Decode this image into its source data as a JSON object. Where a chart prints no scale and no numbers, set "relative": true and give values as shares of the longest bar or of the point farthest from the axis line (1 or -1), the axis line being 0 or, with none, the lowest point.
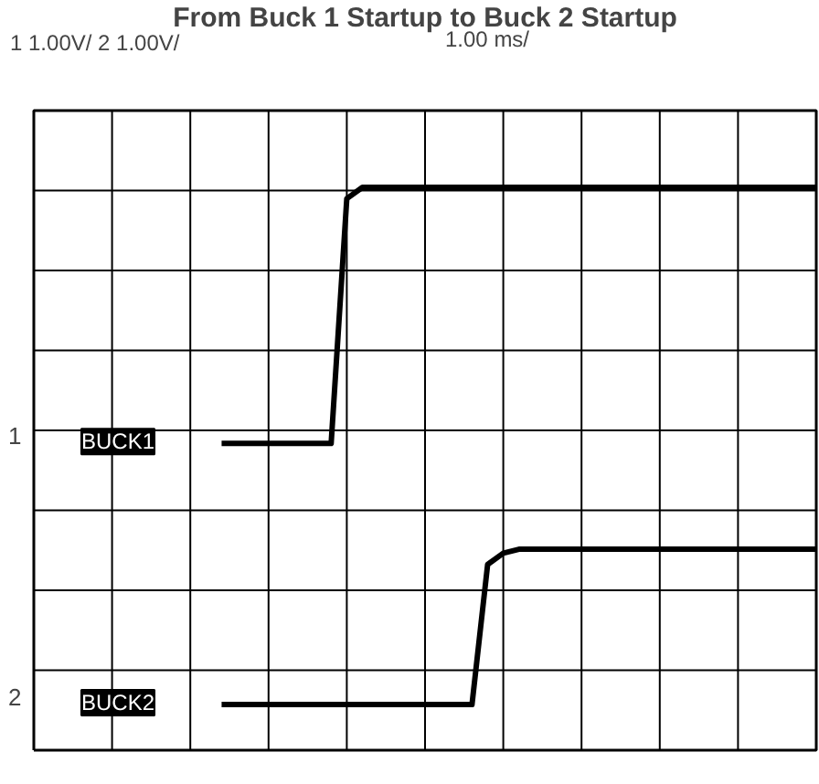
{
  "chart_data": {
    "type": "line",
    "title": "From Buck 1 Startup to Buck 2 Startup",
    "subtitle": "1 1.00V/ 2 1.00V/",
    "annotations": [
      "1.00 ms/",
      "1",
      "2"
    ],
    "relative": true,
    "grid": true,
    "legend": "left",
    "marker": "none",
    "line_style": "solid",
    "categories": [
      null,
      null,
      null,
      null,
      null,
      null,
      null,
      null,
      null,
      null,
      null,
      null,
      null,
      null,
      null,
      null,
      null,
      null,
      null,
      null,
      null,
      null,
      null,
      null,
      null,
      null,
      null,
      null,
      null,
      null,
      null,
      null,
      null,
      null,
      null,
      null,
      null,
      null,
      null,
      null,
      null,
      null,
      null,
      null,
      null,
      null,
      null,
      null,
      null,
      null,
      null
    ],
    "series": [
      {
        "name": "BUCK1",
        "color": "#000000",
        "values": [
          null,
          null,
          null,
          null,
          null,
          null,
          null,
          null,
          null,
          null,
          null,
          null,
          0.545,
          0.545,
          0.545,
          0.545,
          0.545,
          0.545,
          0.545,
          0.545,
          0.98,
          1.0,
          1.0,
          1.0,
          1.0,
          1.0,
          1.0,
          1.0,
          1.0,
          1.0,
          1.0,
          1.0,
          1.0,
          1.0,
          1.0,
          1.0,
          1.0,
          1.0,
          1.0,
          1.0,
          1.0,
          1.0,
          1.0,
          1.0,
          1.0,
          1.0,
          1.0,
          1.0,
          1.0,
          1.0,
          1.0
        ]
      },
      {
        "name": "BUCK2",
        "color": "#000000",
        "values": [
          null,
          null,
          null,
          null,
          null,
          null,
          null,
          null,
          null,
          null,
          null,
          null,
          0.081,
          0.081,
          0.081,
          0.081,
          0.081,
          0.081,
          0.081,
          0.081,
          0.081,
          0.081,
          0.081,
          0.081,
          0.081,
          0.081,
          0.081,
          0.081,
          0.081,
          0.33,
          0.35,
          0.357,
          0.357,
          0.357,
          0.357,
          0.357,
          0.357,
          0.357,
          0.357,
          0.357,
          0.357,
          0.357,
          0.357,
          0.357,
          0.357,
          0.357,
          0.357,
          0.357,
          0.357,
          0.357,
          0.357
        ]
      }
    ]
  }
}
